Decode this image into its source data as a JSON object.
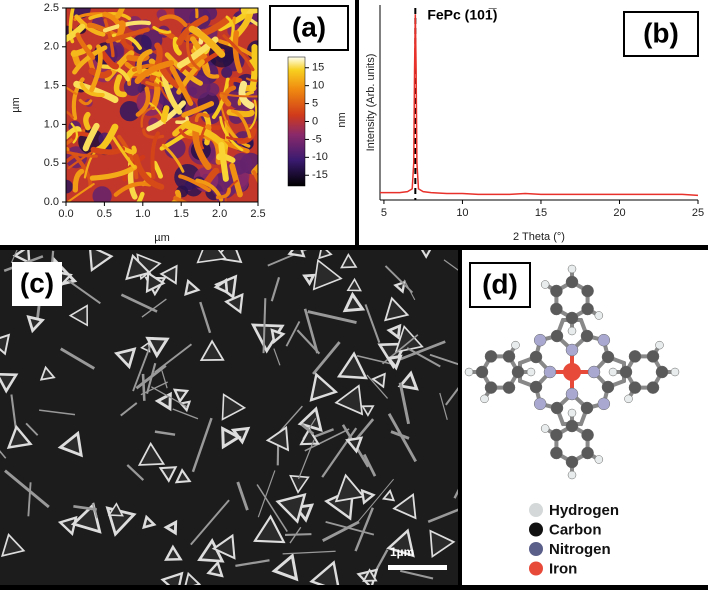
{
  "chart_data": [
    {
      "type": "heatmap",
      "panel_label": "(a)",
      "xlabel": "µm",
      "ylabel": "µm",
      "colorbar_label": "nm",
      "xlim": [
        0,
        2.5
      ],
      "ylim": [
        0,
        2.5
      ],
      "xticks": [
        {
          "value": 0,
          "label": "0.0"
        },
        {
          "value": 0.5,
          "label": "0.5"
        },
        {
          "value": 1,
          "label": "1.0"
        },
        {
          "value": 1.5,
          "label": "1.5"
        },
        {
          "value": 2,
          "label": "2.0"
        },
        {
          "value": 2.5,
          "label": "2.5"
        }
      ],
      "yticks": [
        {
          "value": 0,
          "label": "0.0"
        },
        {
          "value": 0.5,
          "label": "0.5"
        },
        {
          "value": 1,
          "label": "1.0"
        },
        {
          "value": 1.5,
          "label": "1.5"
        },
        {
          "value": 2,
          "label": "2.0"
        },
        {
          "value": 2.5,
          "label": "2.5"
        }
      ],
      "zlim": [
        -18,
        18
      ],
      "zticks": [
        15,
        10,
        5,
        0,
        -5,
        -10,
        -15
      ]
    },
    {
      "type": "line",
      "panel_label": "(b)",
      "xlabel": "2 Theta (°)",
      "ylabel": "Intensity (Arb. units)",
      "annotation": "FePc (101̅)",
      "peak_line": 7.0,
      "xlim": [
        4.75,
        25
      ],
      "xticks": [
        5,
        10,
        15,
        20,
        25
      ],
      "ylim": [
        0,
        105
      ],
      "x": [
        4.75,
        5,
        5.5,
        6,
        6.5,
        6.8,
        6.9,
        6.95,
        7.0,
        7.05,
        7.1,
        7.2,
        7.5,
        8,
        9,
        10,
        11,
        12,
        13,
        14,
        15,
        16,
        17,
        18,
        19,
        20,
        21,
        22,
        23,
        24,
        25
      ],
      "values": [
        4,
        4,
        4,
        4,
        4.5,
        6,
        20,
        70,
        100,
        70,
        20,
        6,
        4.5,
        4,
        3.5,
        3.5,
        3,
        3,
        3,
        3.5,
        3,
        3,
        3,
        3,
        3,
        3,
        3,
        3,
        3,
        3,
        2.5
      ],
      "color": "#e8312a"
    }
  ],
  "sem": {
    "panel_label": "(c)",
    "scale_bar": "1µm"
  },
  "molecule": {
    "panel_label": "(d)",
    "legend": [
      {
        "label": "Hydrogen",
        "color": "#d4d8d8"
      },
      {
        "label": "Carbon",
        "color": "#111111"
      },
      {
        "label": "Nitrogen",
        "color": "#5a5f8a"
      },
      {
        "label": "Iron",
        "color": "#e84a3a"
      }
    ]
  }
}
